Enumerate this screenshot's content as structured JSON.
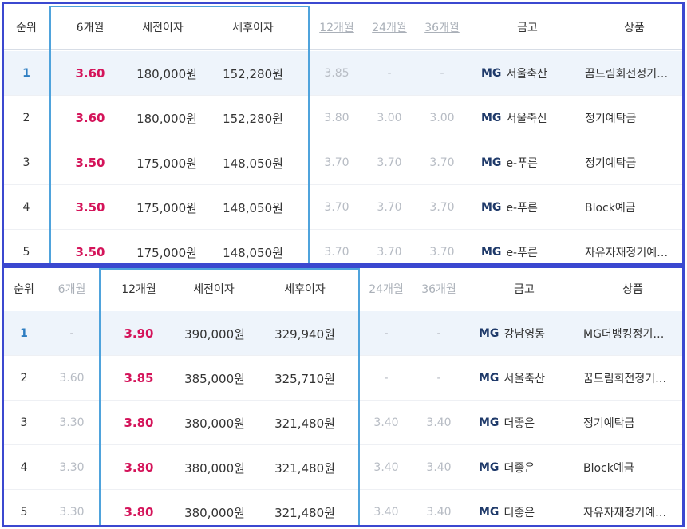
{
  "panel_6m": {
    "headers": {
      "rank": "순위",
      "m6": "6개월",
      "pretax": "세전이자",
      "aftertax": "세후이자",
      "m12": "12개월",
      "m24": "24개월",
      "m36": "36개월",
      "bank": "금고",
      "product": "상품"
    },
    "rows": [
      {
        "rank": "1",
        "m6": "3.60",
        "pretax": "180,000원",
        "aftertax": "152,280원",
        "m12": "3.85",
        "m24": "-",
        "m36": "-",
        "brand": "MG",
        "bank": "서울축산",
        "product": "꿈드림회전정기…"
      },
      {
        "rank": "2",
        "m6": "3.60",
        "pretax": "180,000원",
        "aftertax": "152,280원",
        "m12": "3.80",
        "m24": "3.00",
        "m36": "3.00",
        "brand": "MG",
        "bank": "서울축산",
        "product": "정기예탁금"
      },
      {
        "rank": "3",
        "m6": "3.50",
        "pretax": "175,000원",
        "aftertax": "148,050원",
        "m12": "3.70",
        "m24": "3.70",
        "m36": "3.70",
        "brand": "MG",
        "bank": "e-푸른",
        "product": "정기예탁금"
      },
      {
        "rank": "4",
        "m6": "3.50",
        "pretax": "175,000원",
        "aftertax": "148,050원",
        "m12": "3.70",
        "m24": "3.70",
        "m36": "3.70",
        "brand": "MG",
        "bank": "e-푸른",
        "product": "Block예금"
      },
      {
        "rank": "5",
        "m6": "3.50",
        "pretax": "175,000원",
        "aftertax": "148,050원",
        "m12": "3.70",
        "m24": "3.70",
        "m36": "3.70",
        "brand": "MG",
        "bank": "e-푸른",
        "product": "자유자재정기예…"
      }
    ]
  },
  "panel_12m": {
    "headers": {
      "rank": "순위",
      "m6": "6개월",
      "m12": "12개월",
      "pretax": "세전이자",
      "aftertax": "세후이자",
      "m24": "24개월",
      "m36": "36개월",
      "bank": "금고",
      "product": "상품"
    },
    "rows": [
      {
        "rank": "1",
        "m6": "-",
        "m12": "3.90",
        "pretax": "390,000원",
        "aftertax": "329,940원",
        "m24": "-",
        "m36": "-",
        "brand": "MG",
        "bank": "강남영동",
        "product": "MG더뱅킹정기예…"
      },
      {
        "rank": "2",
        "m6": "3.60",
        "m12": "3.85",
        "pretax": "385,000원",
        "aftertax": "325,710원",
        "m24": "-",
        "m36": "-",
        "brand": "MG",
        "bank": "서울축산",
        "product": "꿈드림회전정기…"
      },
      {
        "rank": "3",
        "m6": "3.30",
        "m12": "3.80",
        "pretax": "380,000원",
        "aftertax": "321,480원",
        "m24": "3.40",
        "m36": "3.40",
        "brand": "MG",
        "bank": "더좋은",
        "product": "정기예탁금"
      },
      {
        "rank": "4",
        "m6": "3.30",
        "m12": "3.80",
        "pretax": "380,000원",
        "aftertax": "321,480원",
        "m24": "3.40",
        "m36": "3.40",
        "brand": "MG",
        "bank": "더좋은",
        "product": "Block예금"
      },
      {
        "rank": "5",
        "m6": "3.30",
        "m12": "3.80",
        "pretax": "380,000원",
        "aftertax": "321,480원",
        "m24": "3.40",
        "m36": "3.40",
        "brand": "MG",
        "bank": "더좋은",
        "product": "자유자재정기예…"
      }
    ]
  },
  "colors": {
    "frame": "#3b48d0",
    "highlight_box": "#4fa3dc",
    "main_rate": "#d4145a",
    "top_row_bg": "#eef4fb",
    "muted": "#b7bcc4",
    "brand": "#1f3a6a"
  }
}
